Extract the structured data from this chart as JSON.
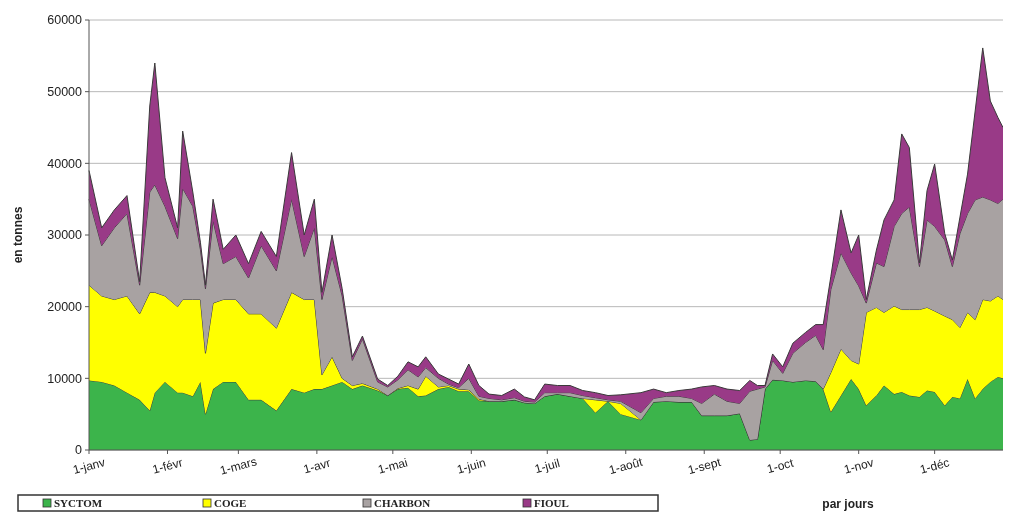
{
  "chart_data": {
    "type": "area",
    "stacked": true,
    "ylabel": "en tonnes",
    "xlabel": "par jours",
    "grid": "y",
    "legend": "bottom",
    "x": [
      "--01-01",
      "--01-06",
      "--01-11",
      "--01-16",
      "--01-21",
      "--01-25",
      "--01-27",
      "--01-31",
      "--02-05",
      "--02-07",
      "--02-11",
      "--02-14",
      "--02-16",
      "--02-19",
      "--02-23",
      "--02-28",
      "--03-05",
      "--03-10",
      "--03-16",
      "--03-22",
      "--03-27",
      "--03-31",
      "--04-03",
      "--04-07",
      "--04-11",
      "--04-15",
      "--04-19",
      "--04-25",
      "--04-29",
      "--05-03",
      "--05-07",
      "--05-11",
      "--05-14",
      "--05-19",
      "--05-23",
      "--05-27",
      "--05-31",
      "--06-04",
      "--06-08",
      "--06-13",
      "--06-18",
      "--06-22",
      "--06-26",
      "--06-30",
      "--07-05",
      "--07-10",
      "--07-15",
      "--07-20",
      "--07-25",
      "--07-30",
      "--08-07",
      "--08-12",
      "--08-17",
      "--08-22",
      "--08-27",
      "--08-31",
      "--09-05",
      "--09-10",
      "--09-15",
      "--09-19",
      "--09-22",
      "--09-25",
      "--09-28",
      "--10-02",
      "--10-06",
      "--10-11",
      "--10-15",
      "--10-18",
      "--10-21",
      "--10-25",
      "--10-29",
      "--11-01",
      "--11-04",
      "--11-08",
      "--11-11",
      "--11-15",
      "--11-18",
      "--11-21",
      "--11-25",
      "--11-28",
      "--12-01",
      "--12-05",
      "--12-08",
      "--12-11",
      "--12-14",
      "--12-17",
      "--12-20",
      "--12-23",
      "--12-26",
      "--12-28"
    ],
    "xlim": [
      "--01-01",
      "--12-28"
    ],
    "xticks": [
      {
        "value": "--01-01",
        "label": "1-janv"
      },
      {
        "value": "--02-01",
        "label": "1-févr"
      },
      {
        "value": "--03-01",
        "label": "1-mars"
      },
      {
        "value": "--04-01",
        "label": "1-avr"
      },
      {
        "value": "--05-01",
        "label": "1-mai"
      },
      {
        "value": "--06-01",
        "label": "1-juin"
      },
      {
        "value": "--07-01",
        "label": "1-juil"
      },
      {
        "value": "--08-01",
        "label": "1-août"
      },
      {
        "value": "--09-01",
        "label": "1-sept"
      },
      {
        "value": "--10-01",
        "label": "1-oct"
      },
      {
        "value": "--11-01",
        "label": "1-nov"
      },
      {
        "value": "--12-01",
        "label": "1-déc"
      }
    ],
    "ylim": [
      0,
      60000
    ],
    "yticks": [
      0,
      10000,
      20000,
      30000,
      40000,
      50000,
      60000
    ],
    "series": [
      {
        "name": "SYCTOM",
        "color": "#3cb44b",
        "values": [
          9700,
          9500,
          9000,
          8000,
          7000,
          5500,
          8000,
          9500,
          8000,
          8000,
          7500,
          9500,
          5000,
          8500,
          9500,
          9500,
          7000,
          7000,
          5500,
          8500,
          8000,
          8500,
          8500,
          9000,
          9500,
          8500,
          9000,
          8300,
          7600,
          8500,
          8700,
          7500,
          7600,
          8500,
          8800,
          8200,
          8200,
          6900,
          6800,
          6800,
          7000,
          6600,
          6500,
          7500,
          7800,
          7500,
          7200,
          5200,
          6800,
          5000,
          4200,
          6700,
          6800,
          6700,
          6700,
          4800,
          4800,
          4800,
          5100,
          1400,
          1500,
          8500,
          9800,
          9700,
          9500,
          9700,
          9600,
          8500,
          5300,
          7600,
          9900,
          8500,
          6200,
          7600,
          9000,
          7800,
          8100,
          7600,
          7400,
          8300,
          8100,
          6200,
          7400,
          7200,
          9900,
          7200,
          8500,
          9500,
          10200,
          10000
        ]
      },
      {
        "name": "COGE",
        "color": "#ffff00",
        "values": [
          13300,
          12000,
          12000,
          13500,
          12000,
          16500,
          14000,
          12000,
          12000,
          13000,
          13500,
          11500,
          8500,
          12000,
          11500,
          11500,
          12000,
          12000,
          11500,
          13500,
          13000,
          12500,
          2000,
          4000,
          500,
          500,
          300,
          200,
          0,
          100,
          300,
          1000,
          2700,
          300,
          200,
          300,
          200,
          200,
          0,
          0,
          0,
          0,
          0,
          0,
          0,
          0,
          0,
          1800,
          0,
          1500,
          0,
          0,
          0,
          0,
          0,
          0,
          0,
          0,
          0,
          0,
          0,
          0,
          0,
          0,
          0,
          0,
          0,
          0,
          5500,
          6500,
          2600,
          3500,
          13000,
          12300,
          10200,
          12300,
          11500,
          12000,
          12200,
          11600,
          11300,
          12500,
          10800,
          9900,
          9300,
          11000,
          12500,
          11300,
          11300,
          11000
        ]
      },
      {
        "name": "CHARBON",
        "color": "#a8a2a2",
        "values": [
          12000,
          7000,
          10000,
          11500,
          4000,
          14000,
          15000,
          12500,
          9500,
          15500,
          13000,
          7000,
          9000,
          11500,
          5000,
          6000,
          5000,
          9500,
          8000,
          13000,
          6000,
          10000,
          10500,
          14000,
          11500,
          3500,
          6200,
          1000,
          1200,
          1200,
          2200,
          1700,
          1200,
          1200,
          200,
          200,
          1600,
          400,
          400,
          200,
          300,
          200,
          200,
          500,
          200,
          500,
          400,
          300,
          200,
          300,
          1000,
          500,
          700,
          800,
          500,
          1700,
          3000,
          2000,
          1400,
          6800,
          7000,
          300,
          2700,
          1000,
          4000,
          5300,
          6400,
          5500,
          11600,
          13400,
          12200,
          10900,
          1300,
          6200,
          6400,
          11100,
          13400,
          14300,
          6000,
          12200,
          11800,
          10600,
          7400,
          13100,
          13800,
          16700,
          14300,
          14100,
          12900,
          14000
        ]
      },
      {
        "name": "FIOUL",
        "color": "#993a87",
        "values": [
          4000,
          2500,
          2500,
          2500,
          500,
          12000,
          17000,
          4000,
          1500,
          8000,
          2000,
          1000,
          500,
          3000,
          2000,
          3000,
          2000,
          2000,
          2000,
          6500,
          3000,
          4000,
          1000,
          3000,
          1000,
          500,
          400,
          400,
          200,
          500,
          1100,
          1400,
          1500,
          600,
          700,
          500,
          2000,
          1500,
          600,
          600,
          1200,
          600,
          300,
          1200,
          1000,
          1000,
          700,
          700,
          600,
          900,
          2800,
          1300,
          500,
          800,
          1300,
          2300,
          1200,
          1700,
          1800,
          1500,
          500,
          200,
          900,
          900,
          1400,
          1400,
          1500,
          3500,
          1800,
          6000,
          2800,
          7100,
          500,
          1800,
          6500,
          3700,
          11100,
          8300,
          500,
          4100,
          8700,
          900,
          900,
          2300,
          5500,
          12400,
          20800,
          13800,
          12000,
          10000
        ]
      }
    ]
  }
}
